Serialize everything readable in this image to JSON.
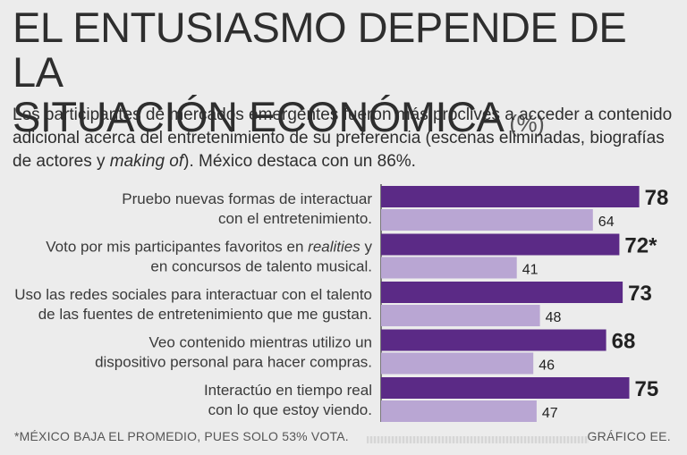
{
  "header": {
    "title_line1": "EL ENTUSIASMO DEPENDE DE LA",
    "title_line2": "SITUACIÓN ECONÓMICA",
    "unit": "(%)",
    "subtitle_part1": "Los participantes de mercados emergentes fueron más proclives a acceder a contenido adicional acerca del entretenimiento de su preferencia (escenas eliminadas, biografías de actores y ",
    "subtitle_italic": "making of",
    "subtitle_part2": "). México destaca con un 86%."
  },
  "footer": {
    "note": "*MÉXICO BAJA EL PROMEDIO, PUES SOLO 53% VOTA.",
    "credit": "GRÁFICO EE."
  },
  "colors": {
    "primary_bar": "#5b2a86",
    "secondary_bar": "#b9a6d3",
    "axis": "#555555",
    "text": "#2e2e2e"
  },
  "chart_data": {
    "type": "bar",
    "orientation": "horizontal",
    "title": "EL ENTUSIASMO DEPENDE DE LA SITUACIÓN ECONÓMICA (%)",
    "xlim": [
      0,
      100
    ],
    "categories": [
      [
        "Pruebo nuevas formas de interactuar",
        "con el entretenimiento."
      ],
      [
        "Voto por mis participantes favoritos en realities y",
        "en concursos de talento musical."
      ],
      [
        "Uso las redes sociales para interactuar con el talento",
        "de las fuentes de entretenimiento que me gustan."
      ],
      [
        "Veo contenido mientras utilizo un",
        "dispositivo personal para hacer compras."
      ],
      [
        "Interactúo en tiempo real",
        "con lo que estoy viendo."
      ]
    ],
    "series": [
      {
        "name": "primary",
        "values": [
          78,
          72,
          73,
          68,
          75
        ],
        "labels": [
          "78",
          "72*",
          "73",
          "68",
          "75"
        ]
      },
      {
        "name": "secondary",
        "values": [
          64,
          41,
          48,
          46,
          47
        ],
        "labels": [
          "64",
          "41",
          "48",
          "46",
          "47"
        ]
      }
    ]
  }
}
